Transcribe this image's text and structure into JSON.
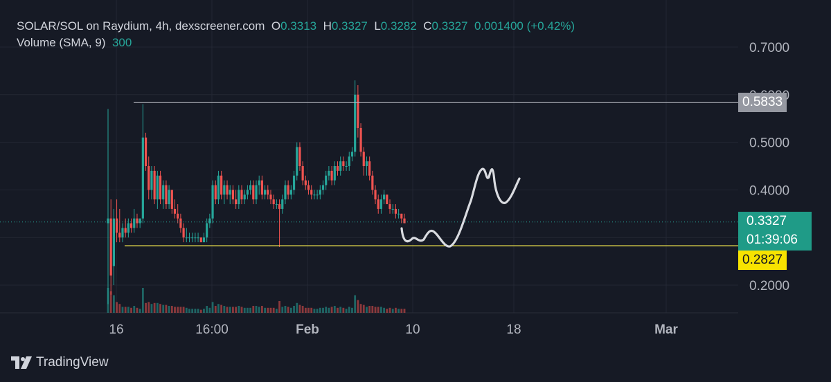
{
  "header": {
    "symbol": "SOLAR/SOL on Raydium, 4h, dexscreener.com",
    "open_label": "O",
    "open": "0.3313",
    "high_label": "H",
    "high": "0.3327",
    "low_label": "L",
    "low": "0.3282",
    "close_label": "C",
    "close": "0.3327",
    "change": "0.001400 (+0.42%)",
    "volume_label": "Volume (SMA, 9)",
    "volume": "300"
  },
  "price_tags": {
    "resistance": "0.5833",
    "current": "0.3327",
    "countdown": "01:39:06",
    "support": "0.2827"
  },
  "brand": "TradingView",
  "colors": {
    "up": "#26a69a",
    "down": "#ef5350",
    "bg": "#161a25",
    "support_line": "#f5e94d",
    "resistance_line": "#b2b5be",
    "drawing": "#d9dbe0"
  },
  "chart_data": {
    "type": "candlestick",
    "y_axis_ticks": [
      "0.7000",
      "0.6000",
      "0.5000",
      "0.4000",
      "0.2000"
    ],
    "x_axis_ticks": [
      "16",
      "16:00",
      "Feb",
      "10",
      "18",
      "Mar"
    ],
    "ylim": [
      0.14,
      0.72
    ],
    "horizontal_levels": [
      {
        "name": "resistance",
        "price": 0.5833
      },
      {
        "name": "support",
        "price": 0.2827
      }
    ],
    "current_price": 0.3327,
    "candles": [
      [
        0.33,
        0.57,
        0.16,
        0.34
      ],
      [
        0.34,
        0.38,
        0.18,
        0.22
      ],
      [
        0.24,
        0.36,
        0.2,
        0.34
      ],
      [
        0.34,
        0.38,
        0.29,
        0.31
      ],
      [
        0.31,
        0.36,
        0.29,
        0.3
      ],
      [
        0.3,
        0.33,
        0.29,
        0.32
      ],
      [
        0.32,
        0.34,
        0.3,
        0.31
      ],
      [
        0.31,
        0.34,
        0.3,
        0.33
      ],
      [
        0.33,
        0.34,
        0.31,
        0.32
      ],
      [
        0.32,
        0.36,
        0.31,
        0.34
      ],
      [
        0.34,
        0.35,
        0.32,
        0.33
      ],
      [
        0.33,
        0.34,
        0.32,
        0.34
      ],
      [
        0.34,
        0.58,
        0.33,
        0.51
      ],
      [
        0.51,
        0.52,
        0.44,
        0.45
      ],
      [
        0.45,
        0.47,
        0.38,
        0.4
      ],
      [
        0.4,
        0.45,
        0.38,
        0.44
      ],
      [
        0.44,
        0.45,
        0.37,
        0.38
      ],
      [
        0.38,
        0.44,
        0.36,
        0.43
      ],
      [
        0.43,
        0.44,
        0.37,
        0.38
      ],
      [
        0.38,
        0.42,
        0.36,
        0.41
      ],
      [
        0.41,
        0.42,
        0.36,
        0.37
      ],
      [
        0.37,
        0.41,
        0.36,
        0.4
      ],
      [
        0.4,
        0.4,
        0.35,
        0.36
      ],
      [
        0.36,
        0.38,
        0.34,
        0.35
      ],
      [
        0.35,
        0.37,
        0.33,
        0.34
      ],
      [
        0.34,
        0.35,
        0.31,
        0.32
      ],
      [
        0.32,
        0.33,
        0.29,
        0.3
      ],
      [
        0.3,
        0.32,
        0.29,
        0.3
      ],
      [
        0.3,
        0.31,
        0.29,
        0.3
      ],
      [
        0.3,
        0.31,
        0.29,
        0.3
      ],
      [
        0.3,
        0.31,
        0.29,
        0.3
      ],
      [
        0.3,
        0.31,
        0.29,
        0.3
      ],
      [
        0.3,
        0.3,
        0.29,
        0.29
      ],
      [
        0.29,
        0.31,
        0.29,
        0.3
      ],
      [
        0.3,
        0.34,
        0.29,
        0.33
      ],
      [
        0.33,
        0.35,
        0.32,
        0.34
      ],
      [
        0.34,
        0.42,
        0.33,
        0.41
      ],
      [
        0.41,
        0.42,
        0.37,
        0.38
      ],
      [
        0.38,
        0.44,
        0.37,
        0.43
      ],
      [
        0.43,
        0.44,
        0.38,
        0.39
      ],
      [
        0.39,
        0.42,
        0.37,
        0.41
      ],
      [
        0.41,
        0.42,
        0.38,
        0.39
      ],
      [
        0.39,
        0.41,
        0.37,
        0.4
      ],
      [
        0.4,
        0.41,
        0.37,
        0.38
      ],
      [
        0.38,
        0.4,
        0.36,
        0.37
      ],
      [
        0.37,
        0.41,
        0.36,
        0.4
      ],
      [
        0.4,
        0.41,
        0.37,
        0.38
      ],
      [
        0.38,
        0.4,
        0.37,
        0.39
      ],
      [
        0.39,
        0.41,
        0.38,
        0.4
      ],
      [
        0.4,
        0.42,
        0.39,
        0.41
      ],
      [
        0.41,
        0.42,
        0.37,
        0.38
      ],
      [
        0.38,
        0.42,
        0.37,
        0.41
      ],
      [
        0.41,
        0.43,
        0.39,
        0.42
      ],
      [
        0.42,
        0.43,
        0.38,
        0.39
      ],
      [
        0.39,
        0.41,
        0.38,
        0.4
      ],
      [
        0.4,
        0.41,
        0.38,
        0.39
      ],
      [
        0.39,
        0.4,
        0.37,
        0.38
      ],
      [
        0.38,
        0.39,
        0.36,
        0.37
      ],
      [
        0.37,
        0.38,
        0.36,
        0.37
      ],
      [
        0.37,
        0.38,
        0.28,
        0.36
      ],
      [
        0.36,
        0.39,
        0.35,
        0.38
      ],
      [
        0.38,
        0.42,
        0.37,
        0.41
      ],
      [
        0.41,
        0.42,
        0.38,
        0.39
      ],
      [
        0.39,
        0.41,
        0.38,
        0.4
      ],
      [
        0.4,
        0.44,
        0.39,
        0.43
      ],
      [
        0.43,
        0.5,
        0.42,
        0.49
      ],
      [
        0.49,
        0.5,
        0.44,
        0.45
      ],
      [
        0.45,
        0.46,
        0.41,
        0.42
      ],
      [
        0.42,
        0.43,
        0.4,
        0.41
      ],
      [
        0.41,
        0.42,
        0.39,
        0.4
      ],
      [
        0.4,
        0.41,
        0.38,
        0.39
      ],
      [
        0.39,
        0.4,
        0.38,
        0.39
      ],
      [
        0.39,
        0.4,
        0.38,
        0.39
      ],
      [
        0.39,
        0.41,
        0.38,
        0.4
      ],
      [
        0.4,
        0.42,
        0.39,
        0.41
      ],
      [
        0.41,
        0.44,
        0.4,
        0.43
      ],
      [
        0.43,
        0.45,
        0.42,
        0.44
      ],
      [
        0.44,
        0.45,
        0.41,
        0.42
      ],
      [
        0.42,
        0.46,
        0.41,
        0.45
      ],
      [
        0.45,
        0.46,
        0.43,
        0.44
      ],
      [
        0.44,
        0.47,
        0.43,
        0.46
      ],
      [
        0.46,
        0.47,
        0.44,
        0.45
      ],
      [
        0.45,
        0.46,
        0.44,
        0.45
      ],
      [
        0.45,
        0.48,
        0.44,
        0.47
      ],
      [
        0.47,
        0.49,
        0.46,
        0.48
      ],
      [
        0.48,
        0.63,
        0.47,
        0.6
      ],
      [
        0.6,
        0.62,
        0.51,
        0.53
      ],
      [
        0.53,
        0.54,
        0.47,
        0.48
      ],
      [
        0.48,
        0.49,
        0.43,
        0.45
      ],
      [
        0.45,
        0.47,
        0.43,
        0.46
      ],
      [
        0.46,
        0.47,
        0.42,
        0.43
      ],
      [
        0.43,
        0.44,
        0.39,
        0.4
      ],
      [
        0.4,
        0.41,
        0.37,
        0.38
      ],
      [
        0.38,
        0.39,
        0.35,
        0.36
      ],
      [
        0.36,
        0.39,
        0.35,
        0.38
      ],
      [
        0.38,
        0.4,
        0.37,
        0.39
      ],
      [
        0.39,
        0.39,
        0.37,
        0.37
      ],
      [
        0.37,
        0.38,
        0.35,
        0.36
      ],
      [
        0.36,
        0.37,
        0.35,
        0.36
      ],
      [
        0.36,
        0.37,
        0.34,
        0.35
      ],
      [
        0.35,
        0.36,
        0.34,
        0.35
      ],
      [
        0.35,
        0.35,
        0.33,
        0.34
      ],
      [
        0.34,
        0.35,
        0.33,
        0.33
      ]
    ]
  }
}
